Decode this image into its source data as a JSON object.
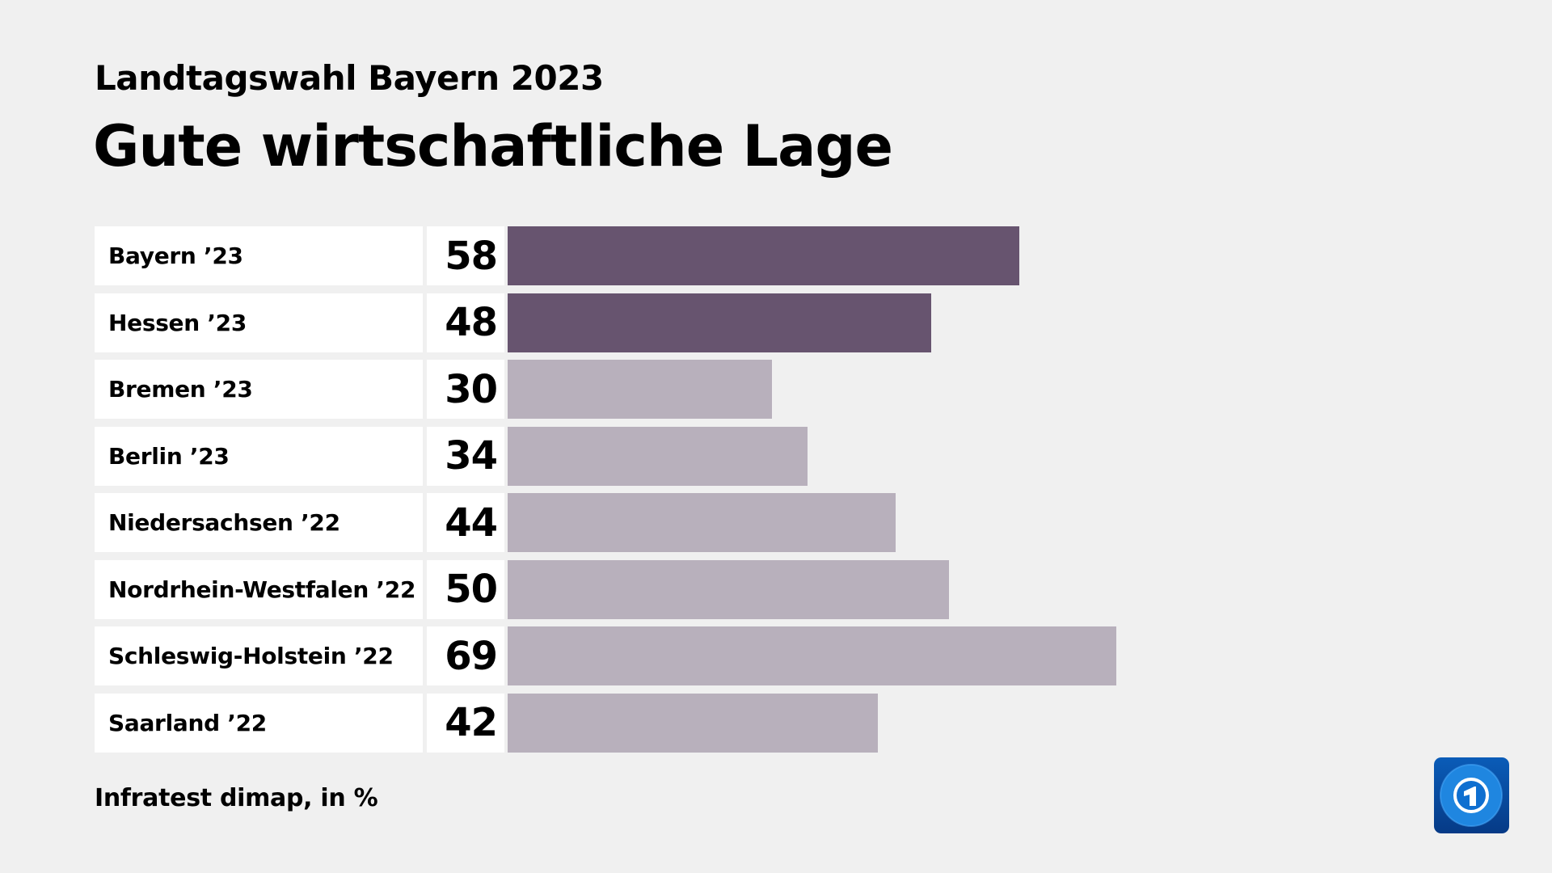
{
  "chart_data": {
    "type": "bar",
    "orientation": "horizontal",
    "subtitle": "Landtagswahl Bayern 2023",
    "title": "Gute wirtschaftliche Lage",
    "categories": [
      "Bayern ’23",
      "Hessen ’23",
      "Bremen ’23",
      "Berlin ’23",
      "Niedersachsen ’22",
      "Nordrhein-Westfalen ’22",
      "Schleswig-Holstein ’22",
      "Saarland ’22"
    ],
    "values": [
      58,
      48,
      30,
      34,
      44,
      50,
      69,
      42
    ],
    "value_labels": [
      "58",
      "48",
      "30",
      "34",
      "44",
      "50",
      "69",
      "42"
    ],
    "highlight": [
      true,
      true,
      false,
      false,
      false,
      false,
      false,
      false
    ],
    "colors": {
      "highlight": "#67546f",
      "default": "#b8b0bc",
      "background": "#f0f0f0"
    },
    "source": "Infratest dimap, in %",
    "grid": false
  },
  "logo": {
    "name": "tagesschau-logo",
    "text": "1"
  }
}
